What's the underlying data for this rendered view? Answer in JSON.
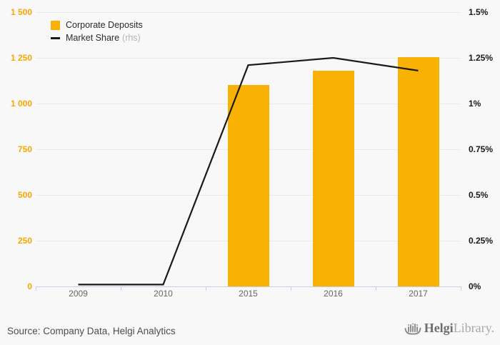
{
  "page": {
    "background": "#f8f8f8"
  },
  "legend": {
    "items": [
      {
        "label": "Corporate Deposits",
        "swatch": "square",
        "color": "#f9b104"
      },
      {
        "label": "Market Share",
        "suffix": "(rhs)",
        "swatch": "line",
        "color": "#1a1a1a"
      }
    ]
  },
  "footer": {
    "source": "Source: Company Data, Helgi Analytics",
    "logo": {
      "name": "Helgi",
      "suffix": "Library."
    }
  },
  "chart_data": {
    "type": "bar",
    "title": "",
    "categories": [
      "2009",
      "2010",
      "2015",
      "2016",
      "2017"
    ],
    "series": [
      {
        "name": "Corporate Deposits",
        "type": "bar",
        "axis": "left",
        "color": "#f9b104",
        "values": [
          0,
          0,
          1100,
          1180,
          1255
        ]
      },
      {
        "name": "Market Share",
        "type": "line",
        "axis": "right",
        "color": "#1a1a1a",
        "unit": "%",
        "values": [
          0.01,
          0.01,
          1.21,
          1.25,
          1.18
        ]
      }
    ],
    "left_axis": {
      "min": 0,
      "max": 1500,
      "color": "#f9a702",
      "ticks": [
        {
          "label": "1 500",
          "value": 1500
        },
        {
          "label": "1 250",
          "value": 1250
        },
        {
          "label": "1 000",
          "value": 1000
        },
        {
          "label": "750",
          "value": 750
        },
        {
          "label": "500",
          "value": 500
        },
        {
          "label": "250",
          "value": 250
        },
        {
          "label": "0",
          "value": 0
        }
      ]
    },
    "right_axis": {
      "min": 0,
      "max": 1.5,
      "color": "#1a1a1a",
      "ticks": [
        {
          "label": "1.5%",
          "value": 1.5
        },
        {
          "label": "1.25%",
          "value": 1.25
        },
        {
          "label": "1%",
          "value": 1
        },
        {
          "label": "0.75%",
          "value": 0.75
        },
        {
          "label": "0.5%",
          "value": 0.5
        },
        {
          "label": "0.25%",
          "value": 0.25
        },
        {
          "label": "0%",
          "value": 0
        }
      ]
    },
    "grid": true,
    "legend_position": "top-left"
  }
}
